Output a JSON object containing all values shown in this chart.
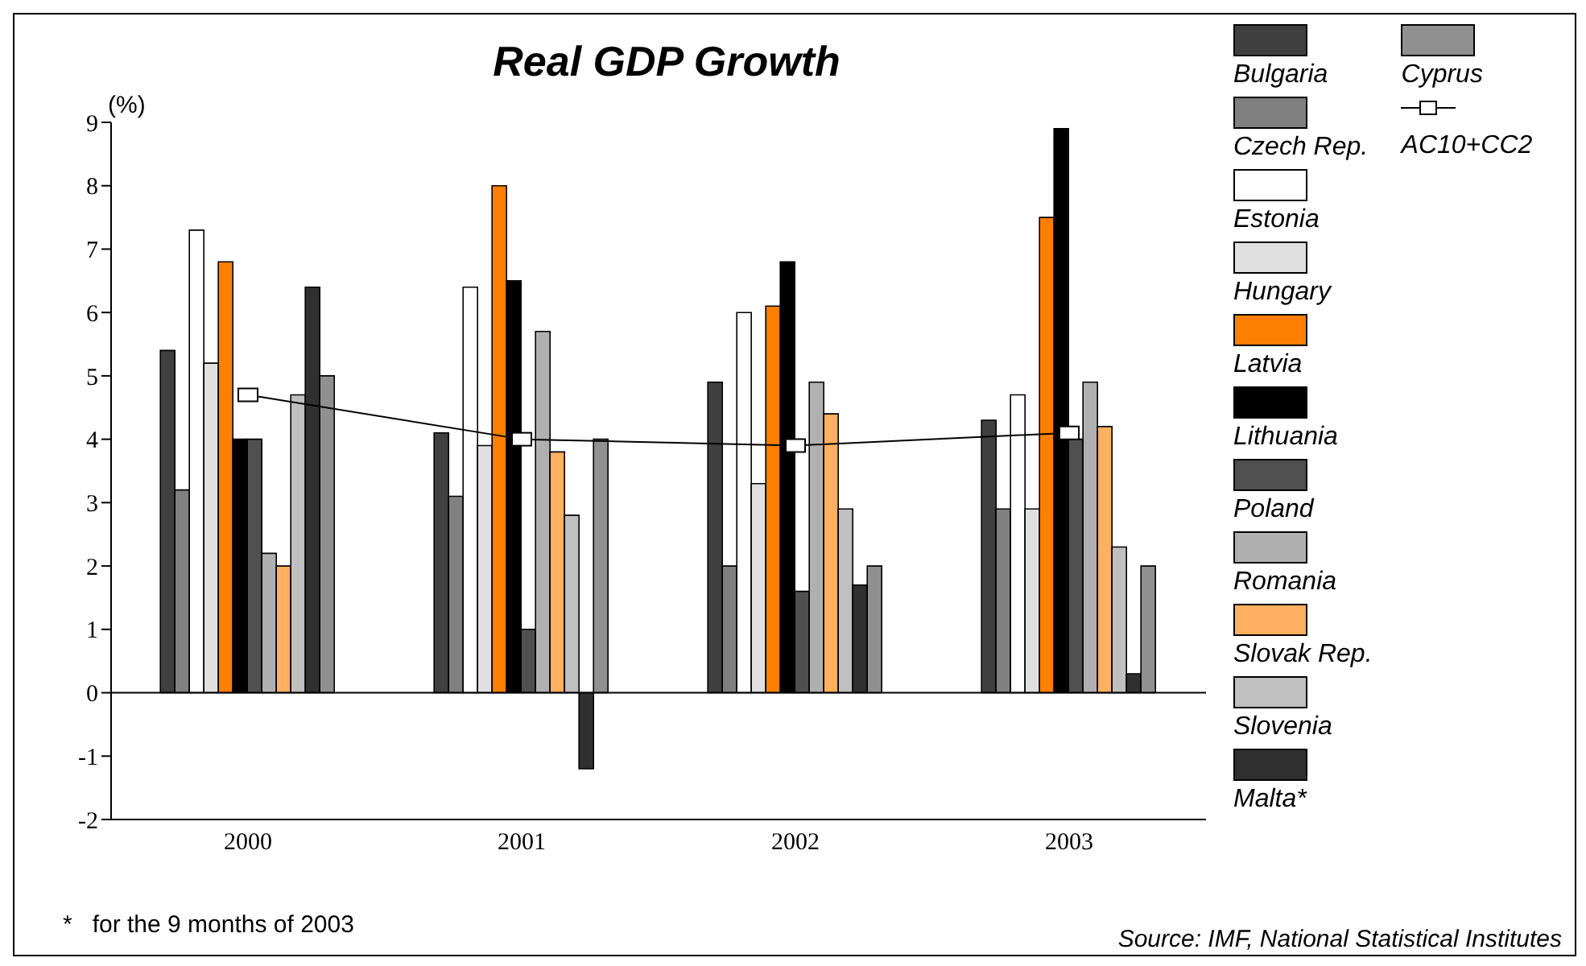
{
  "chart_data": {
    "type": "bar",
    "title": "Real GDP Growth",
    "ylabel": "(%)",
    "categories": [
      "2000",
      "2001",
      "2002",
      "2003"
    ],
    "series": [
      {
        "name": "Bulgaria",
        "color": "#404040",
        "values": [
          5.4,
          4.1,
          4.9,
          4.3
        ]
      },
      {
        "name": "Czech Rep.",
        "color": "#808080",
        "values": [
          3.2,
          3.1,
          2.0,
          2.9
        ]
      },
      {
        "name": "Estonia",
        "color": "#ffffff",
        "values": [
          7.3,
          6.4,
          6.0,
          4.7
        ]
      },
      {
        "name": "Hungary",
        "color": "#e0e0e0",
        "values": [
          5.2,
          3.9,
          3.3,
          2.9
        ]
      },
      {
        "name": "Latvia",
        "color": "#ff8000",
        "values": [
          6.8,
          8.0,
          6.1,
          7.5
        ]
      },
      {
        "name": "Lithuania",
        "color": "#000000",
        "values": [
          4.0,
          6.5,
          6.8,
          8.9
        ]
      },
      {
        "name": "Poland",
        "color": "#505050",
        "values": [
          4.0,
          1.0,
          1.6,
          4.0
        ]
      },
      {
        "name": "Romania",
        "color": "#b0b0b0",
        "values": [
          2.2,
          5.7,
          4.9,
          4.9
        ]
      },
      {
        "name": "Slovak Rep.",
        "color": "#ffb060",
        "values": [
          2.0,
          3.8,
          4.4,
          4.2
        ]
      },
      {
        "name": "Slovenia",
        "color": "#c0c0c0",
        "values": [
          4.7,
          2.8,
          2.9,
          2.3
        ]
      },
      {
        "name": "Malta*",
        "color": "#303030",
        "values": [
          6.4,
          -1.2,
          1.7,
          0.3
        ]
      },
      {
        "name": "Cyprus",
        "color": "#909090",
        "values": [
          5.0,
          4.0,
          2.0,
          2.0
        ]
      },
      {
        "name": "AC10+CC2",
        "type": "line",
        "color": "#000000",
        "values": [
          4.7,
          4.0,
          3.9,
          4.1
        ]
      }
    ],
    "ylim": [
      -2,
      9
    ],
    "yticks": [
      -2,
      -1,
      0,
      1,
      2,
      3,
      4,
      5,
      6,
      7,
      8,
      9
    ],
    "grid": false,
    "legend": "right",
    "marker": "square",
    "ref_lines": [
      {
        "axis": "y",
        "value": 0,
        "color": "#000000"
      }
    ],
    "annotations": [
      "*   for the 9 months of 2003",
      "Source: IMF, National Statistical Institutes"
    ]
  }
}
